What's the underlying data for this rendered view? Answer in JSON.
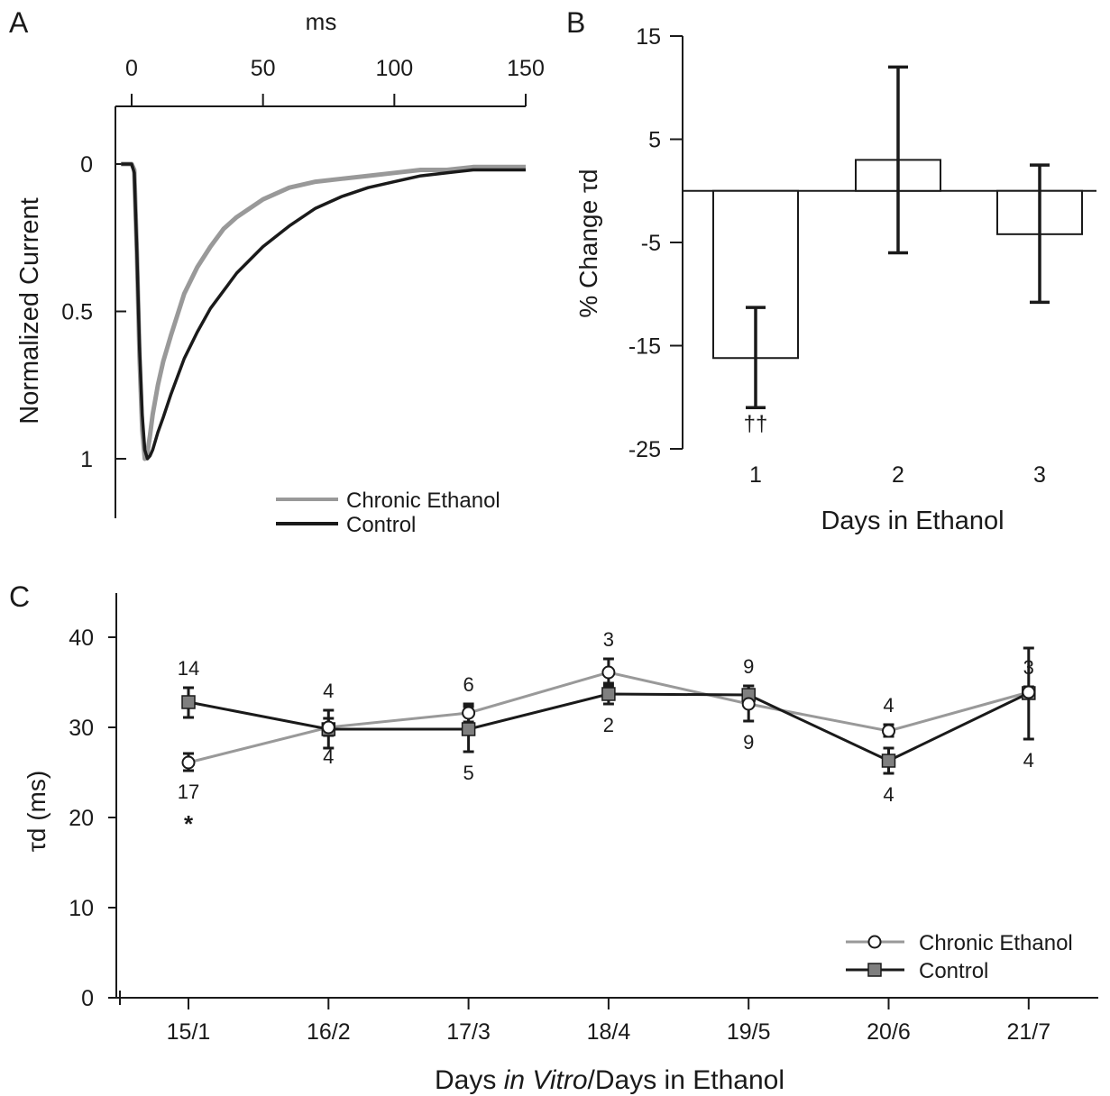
{
  "panels": {
    "a": {
      "label": "A"
    },
    "b": {
      "label": "B"
    },
    "c": {
      "label": "C"
    }
  },
  "chart_data": [
    {
      "panel": "A",
      "type": "line",
      "title": "",
      "xlabel": "ms",
      "ylabel": "Normalized Current",
      "xlim": [
        -4,
        150
      ],
      "ylim": [
        0,
        1
      ],
      "y_inverted": true,
      "x_ticks": [
        0,
        50,
        100,
        150
      ],
      "y_ticks": [
        0,
        0.5,
        1
      ],
      "y_tick_labels": [
        "0",
        "0.5",
        "1"
      ],
      "x_axis_position": "top",
      "legend": {
        "position": "bottom-right"
      },
      "series": [
        {
          "name": "Chronic Ethanol",
          "color": "#999999",
          "x": [
            -4,
            0,
            1,
            2,
            3,
            4,
            5,
            6,
            7,
            8,
            10,
            12,
            15,
            20,
            25,
            30,
            35,
            40,
            50,
            60,
            70,
            80,
            90,
            100,
            110,
            120,
            130,
            140,
            150
          ],
          "y": [
            0,
            0,
            0.02,
            0.3,
            0.65,
            0.9,
            1.0,
            0.98,
            0.92,
            0.85,
            0.75,
            0.67,
            0.58,
            0.44,
            0.35,
            0.28,
            0.22,
            0.18,
            0.12,
            0.08,
            0.06,
            0.05,
            0.04,
            0.03,
            0.02,
            0.02,
            0.01,
            0.01,
            0.01
          ]
        },
        {
          "name": "Control",
          "color": "#1a1a1a",
          "x": [
            -4,
            0,
            1,
            2,
            3,
            4,
            5,
            6,
            7,
            8,
            10,
            12,
            15,
            20,
            25,
            30,
            35,
            40,
            50,
            60,
            70,
            80,
            90,
            100,
            110,
            120,
            130,
            140,
            150
          ],
          "y": [
            0,
            0,
            0.03,
            0.3,
            0.62,
            0.85,
            0.97,
            1.0,
            0.99,
            0.97,
            0.91,
            0.86,
            0.78,
            0.66,
            0.57,
            0.49,
            0.43,
            0.37,
            0.28,
            0.21,
            0.15,
            0.11,
            0.08,
            0.06,
            0.04,
            0.03,
            0.02,
            0.02,
            0.02
          ]
        }
      ]
    },
    {
      "panel": "B",
      "type": "bar",
      "title": "",
      "xlabel": "Days in Ethanol",
      "ylabel": "% Change τd",
      "categories": [
        "1",
        "2",
        "3"
      ],
      "values": [
        -16.2,
        3.0,
        -4.2
      ],
      "error_low": [
        -21.0,
        -6.0,
        -10.8
      ],
      "error_high": [
        -11.3,
        12.0,
        2.5
      ],
      "annotations": [
        "††",
        "",
        ""
      ],
      "ylim": [
        -25,
        15
      ],
      "y_ticks": [
        -25,
        -15,
        -5,
        5,
        15
      ],
      "bar_fill": "#ffffff"
    },
    {
      "panel": "C",
      "type": "line",
      "title": "",
      "xlabel": "Days in Vitro/Days in Ethanol",
      "xlabel_parts": [
        "Days ",
        "in Vitro",
        "/Days in Ethanol"
      ],
      "ylabel": "τd (ms)",
      "categories": [
        "15/1",
        "16/2",
        "17/3",
        "18/4",
        "19/5",
        "20/6",
        "21/7"
      ],
      "ylim": [
        0,
        45
      ],
      "y_ticks": [
        0,
        10,
        20,
        30,
        40
      ],
      "legend": {
        "position": "bottom-right"
      },
      "significance": [
        {
          "category": "15/1",
          "label": "*"
        }
      ],
      "series": [
        {
          "name": "Chronic Ethanol",
          "color": "#999999",
          "marker": "circle",
          "values": [
            26.1,
            30.0,
            31.6,
            36.1,
            32.6,
            29.6,
            33.9
          ],
          "err_low": [
            25.2,
            29.1,
            30.6,
            34.6,
            30.7,
            29.0,
            33.3
          ],
          "err_high": [
            27.1,
            31.0,
            32.6,
            37.6,
            34.6,
            30.3,
            34.5
          ],
          "n": [
            "17",
            "4",
            "6",
            "3",
            "9",
            "4",
            "3"
          ]
        },
        {
          "name": "Control",
          "color": "#1a1a1a",
          "marker": "square",
          "values": [
            32.8,
            29.8,
            29.8,
            33.7,
            33.6,
            26.3,
            33.8
          ],
          "err_low": [
            31.1,
            27.7,
            27.3,
            32.6,
            32.6,
            24.9,
            28.7
          ],
          "err_high": [
            34.4,
            31.9,
            32.3,
            34.9,
            34.6,
            27.7,
            38.8
          ],
          "n": [
            "14",
            "4",
            "5",
            "2",
            "9",
            "4",
            "4"
          ]
        }
      ]
    }
  ]
}
